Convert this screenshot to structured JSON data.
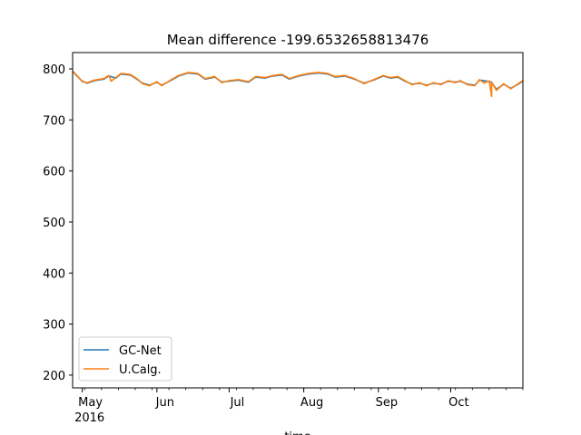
{
  "chart_data": {
    "type": "line",
    "title": "Mean difference -199.6532658813476",
    "xlabel": "time",
    "ylabel": "",
    "xlim": [
      "2016-04-27",
      "2016-10-31"
    ],
    "ylim": [
      175,
      832
    ],
    "yticks": [
      200,
      300,
      400,
      500,
      600,
      700,
      800
    ],
    "xticks": [
      {
        "date": "2016-05-01",
        "label": "May",
        "sublabel": "2016"
      },
      {
        "date": "2016-06-01",
        "label": "Jun",
        "sublabel": ""
      },
      {
        "date": "2016-07-01",
        "label": "Jul",
        "sublabel": ""
      },
      {
        "date": "2016-08-01",
        "label": "Aug",
        "sublabel": ""
      },
      {
        "date": "2016-09-01",
        "label": "Sep",
        "sublabel": ""
      },
      {
        "date": "2016-10-01",
        "label": "Oct",
        "sublabel": ""
      }
    ],
    "grid": false,
    "legend_position": "lower-left",
    "series": [
      {
        "name": "GC-Net",
        "color": "#1f77b4",
        "points": [
          [
            "2016-04-27",
            795
          ],
          [
            "2016-04-29",
            785
          ],
          [
            "2016-05-01",
            776
          ],
          [
            "2016-05-03",
            772
          ],
          [
            "2016-05-06",
            777
          ],
          [
            "2016-05-10",
            780
          ],
          [
            "2016-05-12",
            786
          ],
          [
            "2016-05-15",
            782
          ],
          [
            "2016-05-17",
            790
          ],
          [
            "2016-05-21",
            788
          ],
          [
            "2016-05-24",
            779
          ],
          [
            "2016-05-26",
            772
          ],
          [
            "2016-05-29",
            768
          ],
          [
            "2016-06-01",
            774
          ],
          [
            "2016-06-03",
            768
          ],
          [
            "2016-06-07",
            778
          ],
          [
            "2016-06-10",
            786
          ],
          [
            "2016-06-14",
            792
          ],
          [
            "2016-06-18",
            790
          ],
          [
            "2016-06-21",
            780
          ],
          [
            "2016-06-25",
            784
          ],
          [
            "2016-06-28",
            774
          ],
          [
            "2016-07-01",
            776
          ],
          [
            "2016-07-05",
            778
          ],
          [
            "2016-07-09",
            774
          ],
          [
            "2016-07-12",
            784
          ],
          [
            "2016-07-16",
            782
          ],
          [
            "2016-07-19",
            786
          ],
          [
            "2016-07-23",
            788
          ],
          [
            "2016-07-26",
            780
          ],
          [
            "2016-07-30",
            786
          ],
          [
            "2016-08-03",
            790
          ],
          [
            "2016-08-07",
            792
          ],
          [
            "2016-08-11",
            790
          ],
          [
            "2016-08-14",
            784
          ],
          [
            "2016-08-18",
            786
          ],
          [
            "2016-08-22",
            780
          ],
          [
            "2016-08-26",
            772
          ],
          [
            "2016-08-30",
            778
          ],
          [
            "2016-09-03",
            786
          ],
          [
            "2016-09-06",
            782
          ],
          [
            "2016-09-09",
            784
          ],
          [
            "2016-09-12",
            776
          ],
          [
            "2016-09-15",
            770
          ],
          [
            "2016-09-18",
            772
          ],
          [
            "2016-09-21",
            768
          ],
          [
            "2016-09-24",
            772
          ],
          [
            "2016-09-27",
            770
          ],
          [
            "2016-09-30",
            776
          ],
          [
            "2016-10-03",
            774
          ],
          [
            "2016-10-05",
            776
          ],
          [
            "2016-10-08",
            770
          ],
          [
            "2016-10-11",
            768
          ],
          [
            "2016-10-13",
            778
          ],
          [
            "2016-10-16",
            776
          ],
          [
            "2016-10-18",
            774
          ],
          [
            "2016-10-20",
            760
          ],
          [
            "2016-10-23",
            770
          ],
          [
            "2016-10-26",
            762
          ],
          [
            "2016-10-29",
            770
          ],
          [
            "2016-10-31",
            776
          ]
        ]
      },
      {
        "name": "U.Calg.",
        "color": "#ff7f0e",
        "points": [
          [
            "2016-04-27",
            796
          ],
          [
            "2016-04-29",
            786
          ],
          [
            "2016-05-01",
            775
          ],
          [
            "2016-05-03",
            773
          ],
          [
            "2016-05-06",
            778
          ],
          [
            "2016-05-10",
            781
          ],
          [
            "2016-05-12",
            787
          ],
          [
            "2016-05-13",
            776
          ],
          [
            "2016-05-15",
            783
          ],
          [
            "2016-05-17",
            791
          ],
          [
            "2016-05-21",
            789
          ],
          [
            "2016-05-24",
            780
          ],
          [
            "2016-05-26",
            771
          ],
          [
            "2016-05-29",
            767
          ],
          [
            "2016-06-01",
            775
          ],
          [
            "2016-06-03",
            767
          ],
          [
            "2016-06-07",
            779
          ],
          [
            "2016-06-10",
            787
          ],
          [
            "2016-06-14",
            793
          ],
          [
            "2016-06-18",
            791
          ],
          [
            "2016-06-21",
            781
          ],
          [
            "2016-06-25",
            785
          ],
          [
            "2016-06-28",
            773
          ],
          [
            "2016-07-01",
            777
          ],
          [
            "2016-07-05",
            779
          ],
          [
            "2016-07-09",
            775
          ],
          [
            "2016-07-12",
            785
          ],
          [
            "2016-07-16",
            783
          ],
          [
            "2016-07-19",
            787
          ],
          [
            "2016-07-23",
            789
          ],
          [
            "2016-07-26",
            781
          ],
          [
            "2016-07-30",
            787
          ],
          [
            "2016-08-03",
            791
          ],
          [
            "2016-08-07",
            793
          ],
          [
            "2016-08-11",
            791
          ],
          [
            "2016-08-14",
            785
          ],
          [
            "2016-08-18",
            787
          ],
          [
            "2016-08-22",
            781
          ],
          [
            "2016-08-26",
            771
          ],
          [
            "2016-08-30",
            779
          ],
          [
            "2016-09-03",
            787
          ],
          [
            "2016-09-06",
            783
          ],
          [
            "2016-09-09",
            785
          ],
          [
            "2016-09-12",
            777
          ],
          [
            "2016-09-15",
            769
          ],
          [
            "2016-09-18",
            773
          ],
          [
            "2016-09-21",
            767
          ],
          [
            "2016-09-24",
            773
          ],
          [
            "2016-09-27",
            769
          ],
          [
            "2016-09-30",
            777
          ],
          [
            "2016-10-03",
            773
          ],
          [
            "2016-10-05",
            777
          ],
          [
            "2016-10-08",
            769
          ],
          [
            "2016-10-11",
            767
          ],
          [
            "2016-10-13",
            779
          ],
          [
            "2016-10-15",
            772
          ],
          [
            "2016-10-16",
            775
          ],
          [
            "2016-10-17",
            776
          ],
          [
            "2016-10-18",
            746
          ],
          [
            "2016-10-18",
            774
          ],
          [
            "2016-10-20",
            758
          ],
          [
            "2016-10-23",
            771
          ],
          [
            "2016-10-26",
            761
          ],
          [
            "2016-10-29",
            771
          ],
          [
            "2016-10-31",
            777
          ]
        ]
      }
    ]
  }
}
